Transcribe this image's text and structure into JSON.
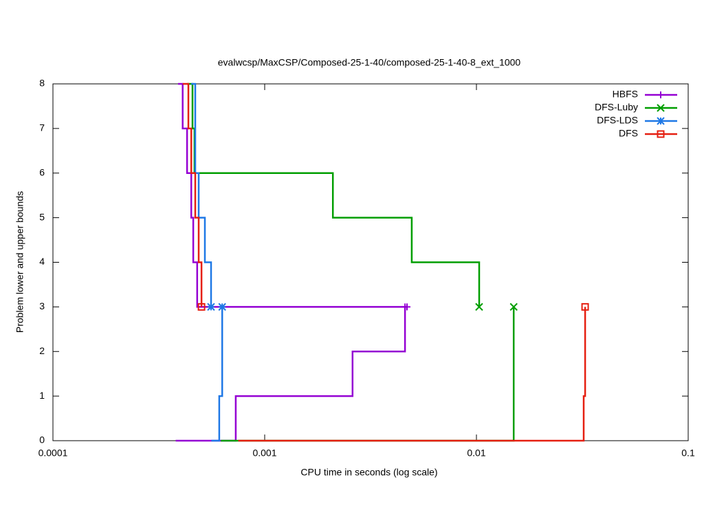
{
  "chart_data": {
    "type": "line",
    "title": "evalwcsp/MaxCSP/Composed-25-1-40/composed-25-1-40-8_ext_1000",
    "xlabel": "CPU time in seconds (log scale)",
    "ylabel": "Problem lower and upper bounds",
    "xlog": true,
    "xlim": [
      0.0001,
      0.1
    ],
    "xticks": [
      {
        "value": 0.0001,
        "label": "0.0001"
      },
      {
        "value": 0.001,
        "label": "0.001"
      },
      {
        "value": 0.01,
        "label": "0.01"
      },
      {
        "value": 0.1,
        "label": "0.1"
      }
    ],
    "ylim": [
      0,
      8
    ],
    "yticks": [
      0,
      1,
      2,
      3,
      4,
      5,
      6,
      7,
      8
    ],
    "legend": "top-right",
    "series": [
      {
        "name": "HBFS",
        "color": "#9400d3",
        "marker": "plus",
        "x": [
          0.00039,
          0.00041,
          0.00041,
          0.00043,
          0.00043,
          0.00045,
          0.00045,
          0.00046,
          0.00046,
          0.00048,
          0.00048,
          0.0047,
          null,
          0.00038,
          0.00073,
          0.00073,
          0.0026,
          0.0026,
          0.0046,
          0.0046
        ],
        "values": [
          8,
          8,
          7,
          7,
          6,
          6,
          5,
          5,
          4,
          4,
          3,
          3,
          null,
          0,
          0,
          1,
          1,
          2,
          2,
          3
        ]
      },
      {
        "name": "DFS-Luby",
        "color": "#009e00",
        "marker": "cross",
        "x": [
          0.00043,
          0.000456,
          0.000456,
          0.000466,
          0.000466,
          0.0021,
          0.0021,
          0.00495,
          0.00495,
          0.0103,
          0.0103,
          null,
          0.00062,
          0.015,
          0.015
        ],
        "values": [
          8,
          8,
          7,
          7,
          6,
          6,
          5,
          5,
          4,
          4,
          3,
          null,
          0,
          0,
          3
        ]
      },
      {
        "name": "DFS-LDS",
        "color": "#1e78e6",
        "marker": "star",
        "x": [
          0.00045,
          0.00047,
          0.00047,
          0.000488,
          0.000488,
          0.000522,
          0.000522,
          0.000558,
          0.000558,
          null,
          0.00056,
          0.00061,
          0.00061,
          0.00063,
          0.00063
        ],
        "values": [
          8,
          8,
          6,
          6,
          5,
          5,
          4,
          4,
          3,
          null,
          0,
          0,
          1,
          1,
          3
        ]
      },
      {
        "name": "DFS",
        "color": "#e51e10",
        "marker": "square",
        "x": [
          0.00041,
          0.000436,
          0.000436,
          0.00045,
          0.00045,
          0.00047,
          0.00047,
          0.000488,
          0.000488,
          0.000503,
          0.000503,
          null,
          0.00075,
          0.0321,
          0.0321,
          0.0326,
          0.0326
        ],
        "values": [
          8,
          8,
          7,
          7,
          6,
          6,
          5,
          5,
          4,
          4,
          3,
          null,
          0,
          0,
          1,
          1,
          3
        ]
      }
    ]
  }
}
